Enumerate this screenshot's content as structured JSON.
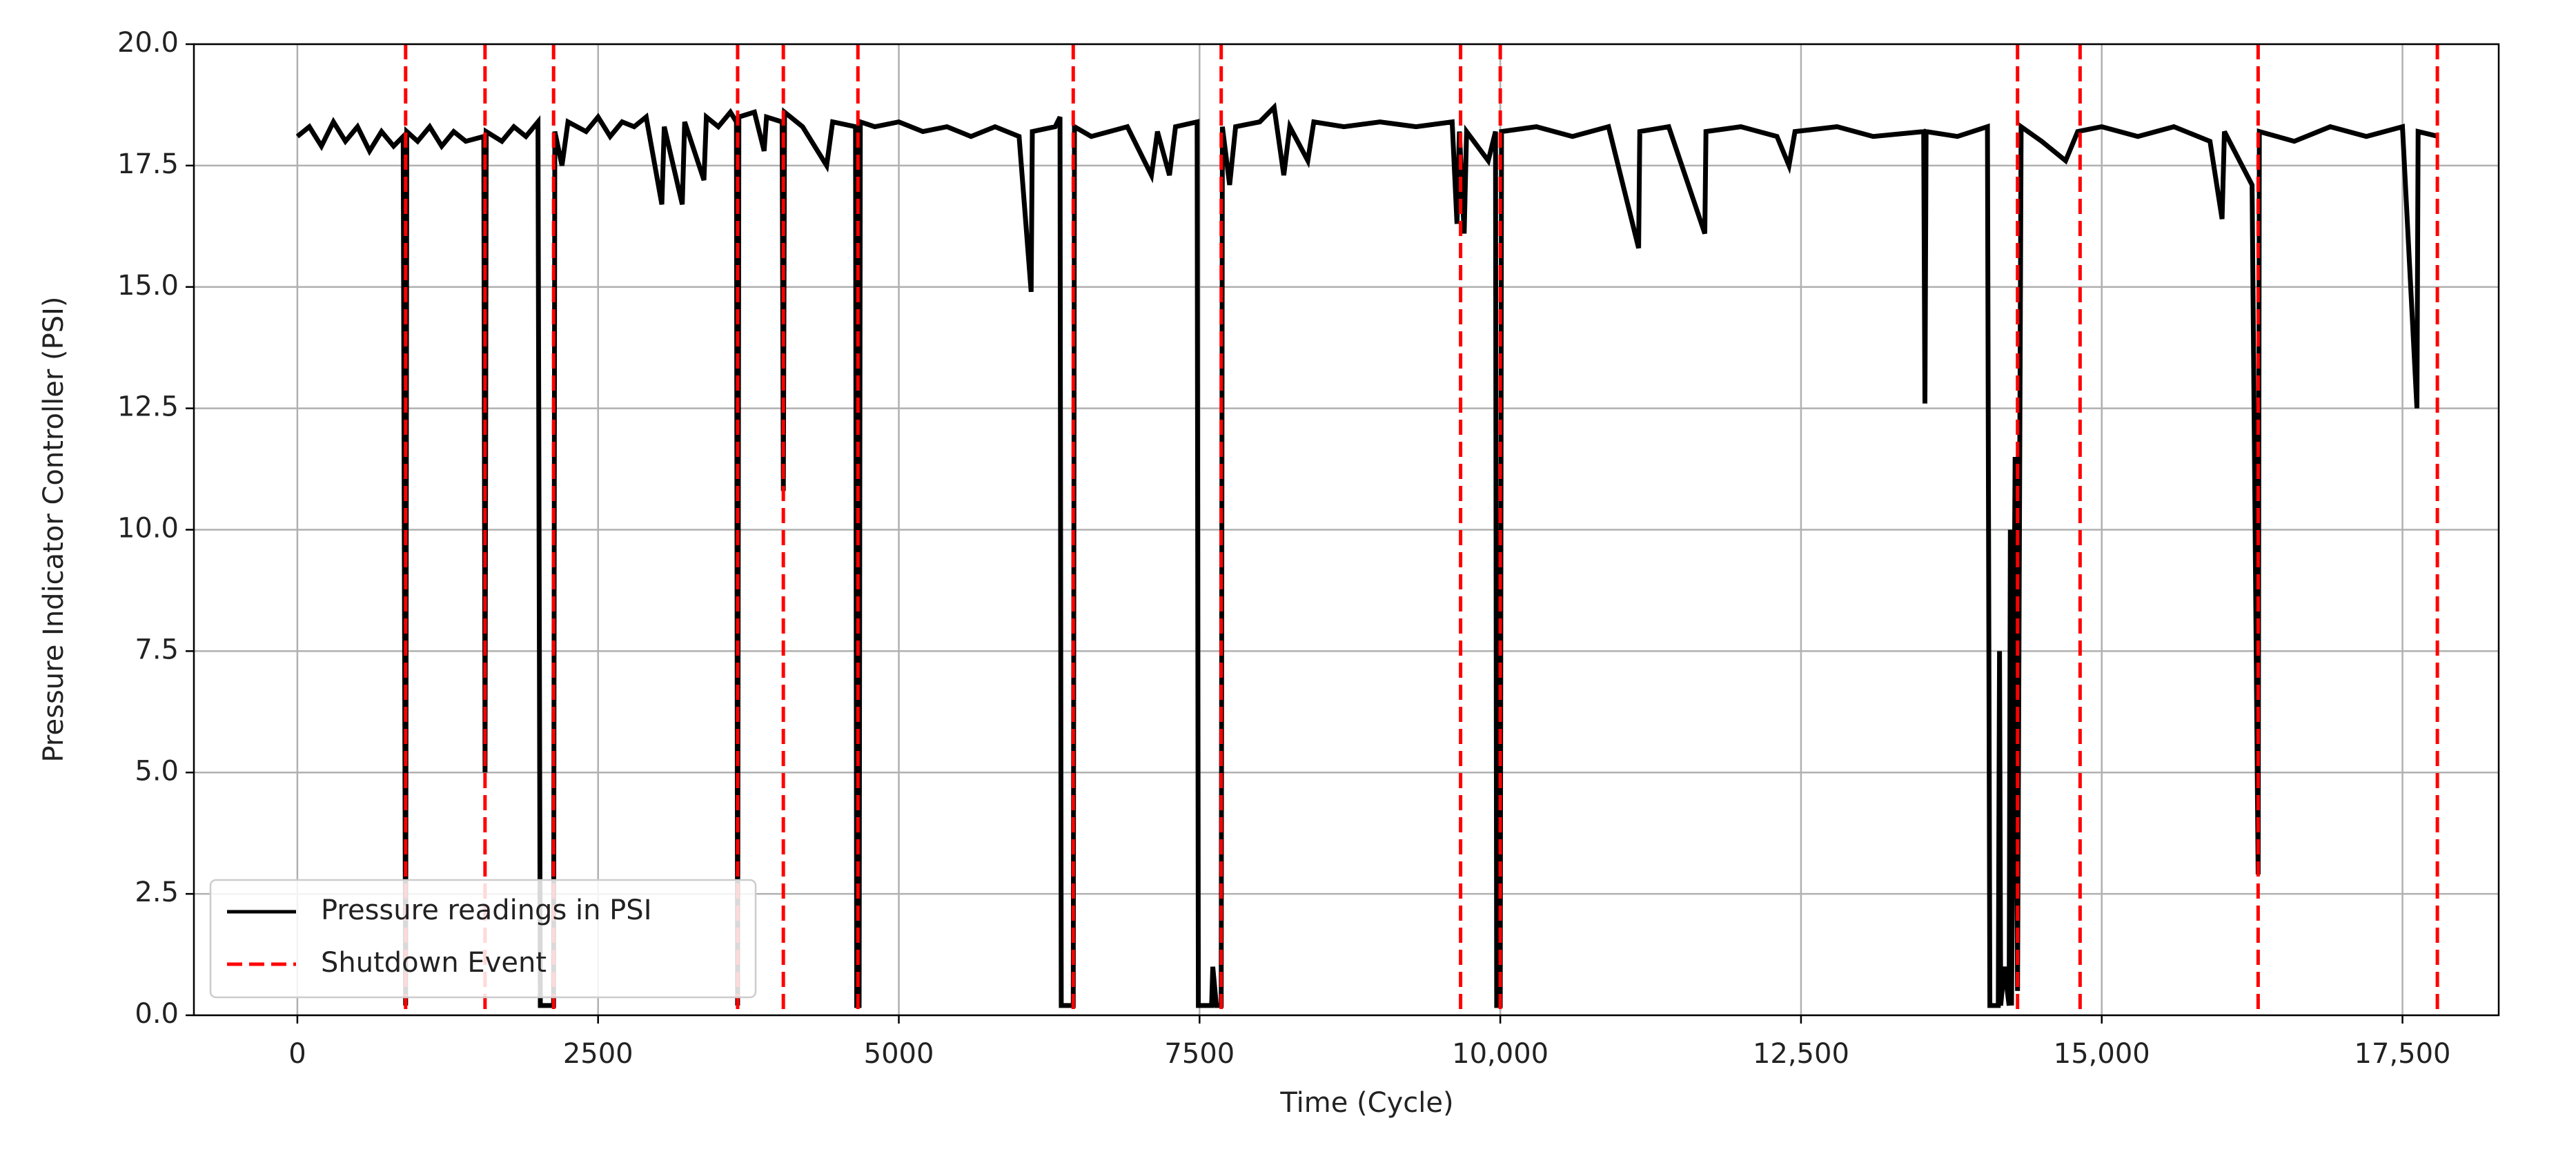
{
  "chart_data": {
    "type": "line",
    "xlabel": "Time (Cycle)",
    "ylabel": "Pressure Indicator Controller (PSI)",
    "xlim": [
      -860,
      18300
    ],
    "ylim": [
      0,
      20
    ],
    "xticks": [
      0,
      2500,
      5000,
      7500,
      {
        "value": 10000,
        "label": "10,000"
      },
      {
        "value": 12500,
        "label": "12,500"
      },
      {
        "value": 15000,
        "label": "15,000"
      },
      {
        "value": 17500,
        "label": "17,500"
      }
    ],
    "yticks": [
      {
        "value": 0,
        "label": "0.0"
      },
      {
        "value": 2.5,
        "label": "2.5"
      },
      {
        "value": 5,
        "label": "5.0"
      },
      {
        "value": 7.5,
        "label": "7.5"
      },
      {
        "value": 10,
        "label": "10.0"
      },
      {
        "value": 12.5,
        "label": "12.5"
      },
      {
        "value": 15,
        "label": "15.0"
      },
      {
        "value": 17.5,
        "label": "17.5"
      },
      {
        "value": 20,
        "label": "20.0"
      }
    ],
    "grid": true,
    "legend": "lower left",
    "series": [
      {
        "name": "Pressure readings in PSI",
        "color": "#000000",
        "x": [
          0,
          100,
          200,
          300,
          400,
          500,
          600,
          700,
          800,
          880,
          900,
          910,
          1000,
          1100,
          1200,
          1300,
          1400,
          1550,
          1560,
          1570,
          1700,
          1800,
          1900,
          2000,
          2020,
          2130,
          2140,
          2200,
          2250,
          2400,
          2500,
          2600,
          2700,
          2800,
          2900,
          3030,
          3050,
          3200,
          3220,
          3380,
          3400,
          3500,
          3600,
          3650,
          3660,
          3670,
          3800,
          3880,
          3900,
          4030,
          4040,
          4050,
          4200,
          4400,
          4450,
          4640,
          4650,
          4670,
          4680,
          4800,
          5000,
          5200,
          5400,
          5600,
          5800,
          6000,
          6100,
          6110,
          6300,
          6340,
          6350,
          6450,
          6460,
          6600,
          6900,
          7100,
          7150,
          7250,
          7300,
          7480,
          7490,
          7600,
          7610,
          7640,
          7680,
          7690,
          7750,
          7800,
          8000,
          8120,
          8200,
          8250,
          8400,
          8450,
          8700,
          9000,
          9300,
          9600,
          9640,
          9660,
          9700,
          9720,
          9900,
          9960,
          9970,
          10000,
          10010,
          10300,
          10600,
          10900,
          11150,
          11160,
          11400,
          11700,
          11710,
          12000,
          12300,
          12400,
          12450,
          12800,
          13100,
          13520,
          13530,
          13540,
          13800,
          14050,
          14070,
          14140,
          14150,
          14160,
          14190,
          14230,
          14240,
          14250,
          14280,
          14300,
          14330,
          14500,
          14700,
          14800,
          15000,
          15300,
          15600,
          15900,
          16000,
          16020,
          16250,
          16300,
          16310,
          16600,
          16900,
          17200,
          17500,
          17620,
          17630,
          17800
        ],
        "values": [
          18.1,
          18.3,
          17.9,
          18.4,
          18.0,
          18.3,
          17.8,
          18.2,
          17.9,
          18.1,
          0.2,
          18.2,
          18.0,
          18.3,
          17.9,
          18.2,
          18.0,
          18.1,
          5.0,
          18.2,
          18.0,
          18.3,
          18.1,
          18.4,
          0.2,
          0.2,
          18.2,
          17.5,
          18.4,
          18.2,
          18.5,
          18.1,
          18.4,
          18.3,
          18.5,
          16.7,
          18.3,
          16.7,
          18.4,
          17.2,
          18.5,
          18.3,
          18.6,
          18.4,
          0.2,
          18.5,
          18.6,
          17.8,
          18.5,
          18.4,
          10.8,
          18.6,
          18.3,
          17.5,
          18.4,
          18.3,
          0.2,
          0.2,
          18.4,
          18.3,
          18.4,
          18.2,
          18.3,
          18.1,
          18.3,
          18.1,
          14.9,
          18.2,
          18.3,
          18.5,
          0.2,
          0.2,
          18.3,
          18.1,
          18.3,
          17.3,
          18.2,
          17.3,
          18.3,
          18.4,
          0.2,
          0.2,
          1.0,
          0.2,
          0.2,
          18.3,
          17.1,
          18.3,
          18.4,
          18.7,
          17.3,
          18.3,
          17.6,
          18.4,
          18.3,
          18.4,
          18.3,
          18.4,
          16.3,
          18.2,
          16.1,
          18.2,
          17.6,
          18.2,
          0.2,
          0.2,
          18.2,
          18.3,
          18.1,
          18.3,
          15.8,
          18.2,
          18.3,
          16.1,
          18.2,
          18.3,
          18.1,
          17.5,
          18.2,
          18.3,
          18.1,
          18.2,
          12.6,
          18.2,
          18.1,
          18.3,
          0.2,
          0.2,
          7.5,
          0.2,
          1.0,
          0.2,
          10.0,
          0.2,
          11.5,
          0.5,
          18.3,
          18.0,
          17.6,
          18.2,
          18.3,
          18.1,
          18.3,
          18.0,
          16.4,
          18.2,
          17.1,
          2.9,
          18.2,
          18.0,
          18.3,
          18.1,
          18.3,
          12.5,
          18.2,
          18.1
        ]
      }
    ],
    "shutdown_events": {
      "name": "Shutdown Event",
      "color": "#ff0000",
      "x": [
        900,
        1560,
        2130,
        3660,
        4040,
        4660,
        6450,
        7680,
        9670,
        10000,
        14300,
        14820,
        16300,
        17790
      ]
    }
  }
}
